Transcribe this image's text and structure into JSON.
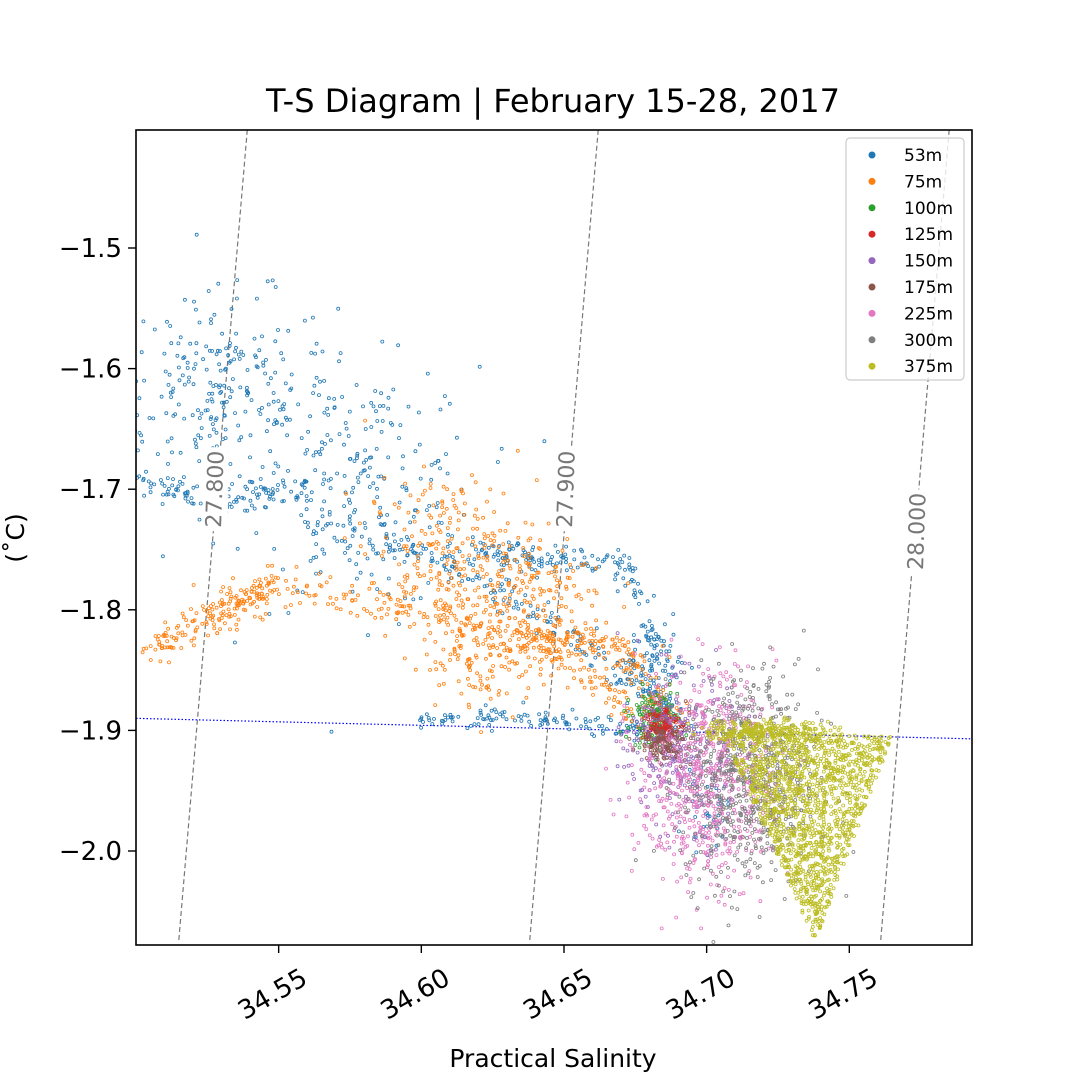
{
  "chart_data": {
    "type": "scatter",
    "title": "T-S Diagram | February 15-28, 2017",
    "xlabel": "Practical Salinity",
    "ylabel": "(˚C)",
    "xlim": [
      34.5,
      34.793
    ],
    "ylim": [
      2.079,
      -2.079
    ],
    "ylim_note": "",
    "x_ticks": [
      {
        "value": 34.55,
        "label": "34.55"
      },
      {
        "value": 34.6,
        "label": "34.60"
      },
      {
        "value": 34.65,
        "label": "34.65"
      },
      {
        "value": 34.7,
        "label": "34.70"
      },
      {
        "value": 34.75,
        "label": "34.75"
      }
    ],
    "y_ticks": [
      {
        "value": -1.5,
        "label": "−1.5"
      },
      {
        "value": -1.6,
        "label": "−1.6"
      },
      {
        "value": -1.7,
        "label": "−1.7"
      },
      {
        "value": -1.8,
        "label": "−1.8"
      },
      {
        "value": -1.9,
        "label": "−1.9"
      },
      {
        "value": -2.0,
        "label": "−2.0"
      }
    ],
    "density_contours": [
      {
        "label": "27.800",
        "points": [
          [
            34.539,
            -1.402
          ],
          [
            34.515,
            -2.074
          ]
        ]
      },
      {
        "label": "27.900",
        "points": [
          [
            34.662,
            -1.402
          ],
          [
            34.638,
            -2.074
          ]
        ]
      },
      {
        "label": "28.000",
        "points": [
          [
            34.785,
            -1.402
          ],
          [
            34.761,
            -2.074
          ]
        ]
      }
    ],
    "freezing_line": {
      "points": [
        [
          34.5,
          -1.89
        ],
        [
          34.793,
          -1.907
        ]
      ]
    },
    "legend": {
      "position": "top-right"
    },
    "series": [
      {
        "name": "53m",
        "color": "#1f77b4"
      },
      {
        "name": "75m",
        "color": "#ff7f0e"
      },
      {
        "name": "100m",
        "color": "#2ca02c"
      },
      {
        "name": "125m",
        "color": "#d62728"
      },
      {
        "name": "150m",
        "color": "#9467bd"
      },
      {
        "name": "175m",
        "color": "#8c564b"
      },
      {
        "name": "225m",
        "color": "#e377c2"
      },
      {
        "name": "300m",
        "color": "#7f7f7f"
      },
      {
        "name": "375m",
        "color": "#bcbd22"
      }
    ]
  }
}
